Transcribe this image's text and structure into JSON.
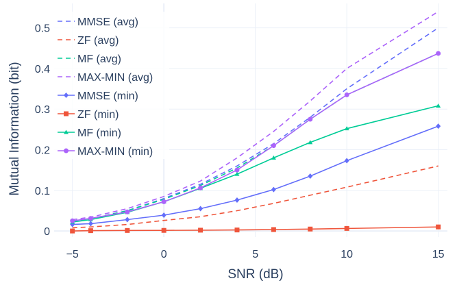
{
  "chart_data": {
    "type": "line",
    "title": "",
    "xlabel": "SNR (dB)",
    "ylabel": "Mutual Information (bit)",
    "xlim": [
      -6,
      15.5
    ],
    "ylim": [
      -0.015,
      0.56
    ],
    "x_ticks": [
      -5,
      0,
      5,
      10,
      15
    ],
    "x_tick_labels": [
      "−5",
      "0",
      "5",
      "10",
      "15"
    ],
    "y_ticks": [
      0,
      0.1,
      0.2,
      0.3,
      0.4,
      0.5
    ],
    "y_tick_labels": [
      "0",
      "0.1",
      "0.2",
      "0.3",
      "0.4",
      "0.5"
    ],
    "grid": true,
    "legend_position": "top-left",
    "x": [
      -5,
      -4,
      -2,
      0,
      2,
      4,
      6,
      8,
      10,
      15
    ],
    "series": [
      {
        "name": "MMSE (avg)",
        "color": "#636efa",
        "dash": "dash",
        "marker": "none",
        "values": [
          0.025,
          0.03,
          0.05,
          0.08,
          0.115,
          0.16,
          0.215,
          0.28,
          0.35,
          0.5
        ]
      },
      {
        "name": "ZF (avg)",
        "color": "#ef553b",
        "dash": "dash",
        "marker": "none",
        "values": [
          0.008,
          0.01,
          0.016,
          0.026,
          0.035,
          0.05,
          0.068,
          0.088,
          0.108,
          0.16
        ]
      },
      {
        "name": "MF (avg)",
        "color": "#00cc96",
        "dash": "dash",
        "marker": "none",
        "values": [
          0.025,
          0.03,
          0.05,
          0.078,
          0.112,
          0.155,
          0.21,
          0.275,
          0.335,
          0.437
        ]
      },
      {
        "name": "MAX-MIN (avg)",
        "color": "#ab63fa",
        "dash": "dash",
        "marker": "none",
        "values": [
          0.028,
          0.034,
          0.055,
          0.085,
          0.123,
          0.18,
          0.245,
          0.32,
          0.4,
          0.54
        ]
      },
      {
        "name": "MMSE (min)",
        "color": "#636efa",
        "dash": "solid",
        "marker": "diamond",
        "values": [
          0.016,
          0.018,
          0.028,
          0.039,
          0.055,
          0.076,
          0.102,
          0.135,
          0.173,
          0.258
        ]
      },
      {
        "name": "ZF (min)",
        "color": "#ef553b",
        "dash": "solid",
        "marker": "square",
        "values": [
          0.0,
          0.0008,
          0.0013,
          0.0015,
          0.002,
          0.0025,
          0.0035,
          0.0048,
          0.0063,
          0.01
        ]
      },
      {
        "name": "MF (min)",
        "color": "#00cc96",
        "dash": "solid",
        "marker": "triangle",
        "values": [
          0.022,
          0.028,
          0.046,
          0.072,
          0.105,
          0.14,
          0.18,
          0.218,
          0.252,
          0.308
        ]
      },
      {
        "name": "MAX-MIN (min)",
        "color": "#ab63fa",
        "dash": "solid",
        "marker": "circle",
        "values": [
          0.025,
          0.031,
          0.047,
          0.072,
          0.106,
          0.15,
          0.21,
          0.275,
          0.335,
          0.437
        ]
      }
    ]
  }
}
